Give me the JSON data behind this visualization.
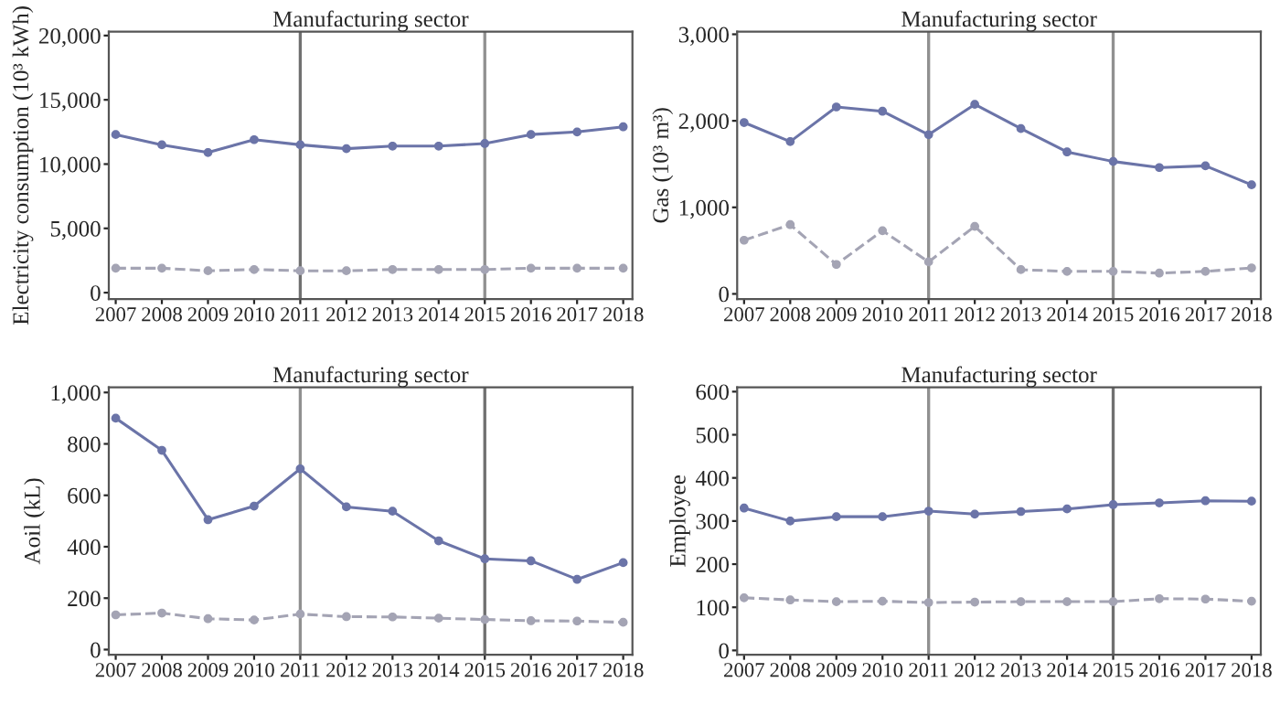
{
  "chart_data": [
    {
      "type": "line",
      "title": "Manufacturing sector",
      "ylabel": "Electricity consumption (10³ kWh)",
      "x": [
        2007,
        2008,
        2009,
        2010,
        2011,
        2012,
        2013,
        2014,
        2015,
        2016,
        2017,
        2018
      ],
      "xlim": [
        2006.85,
        2018.2
      ],
      "xticks": [
        2007,
        2008,
        2009,
        2010,
        2011,
        2012,
        2013,
        2014,
        2015,
        2016,
        2017,
        2018
      ],
      "ylim": [
        -500,
        20300
      ],
      "yticks": [
        0,
        {
          "value": 5000,
          "label": "5,000"
        },
        {
          "value": 10000,
          "label": "10,000"
        },
        {
          "value": 15000,
          "label": "15,000"
        },
        {
          "value": 20000,
          "label": "20,000"
        }
      ],
      "grid": false,
      "marker": "circle",
      "ref_lines": [
        {
          "axis": "x",
          "value": 2011,
          "color": "#707070"
        },
        {
          "axis": "x",
          "value": 2015,
          "color": "#909090"
        }
      ],
      "series": [
        {
          "color": "#6b74a8",
          "line_style": "solid",
          "values": [
            12300,
            11500,
            10900,
            11900,
            11500,
            11200,
            11400,
            11400,
            11600,
            12300,
            12500,
            12900
          ]
        },
        {
          "color": "#a4a4b4",
          "line_style": "dashed",
          "values": [
            1900,
            1900,
            1700,
            1800,
            1700,
            1700,
            1800,
            1800,
            1800,
            1900,
            1900,
            1900
          ]
        }
      ]
    },
    {
      "type": "line",
      "title": "Manufacturing sector",
      "ylabel": "Gas (10³ m³)",
      "x": [
        2007,
        2008,
        2009,
        2010,
        2011,
        2012,
        2013,
        2014,
        2015,
        2016,
        2017,
        2018
      ],
      "xlim": [
        2006.85,
        2018.2
      ],
      "xticks": [
        2007,
        2008,
        2009,
        2010,
        2011,
        2012,
        2013,
        2014,
        2015,
        2016,
        2017,
        2018
      ],
      "ylim": [
        -60,
        3030
      ],
      "yticks": [
        0,
        {
          "value": 1000,
          "label": "1,000"
        },
        {
          "value": 2000,
          "label": "2,000"
        },
        {
          "value": 3000,
          "label": "3,000"
        }
      ],
      "grid": false,
      "marker": "circle",
      "ref_lines": [
        {
          "axis": "x",
          "value": 2011,
          "color": "#909090"
        },
        {
          "axis": "x",
          "value": 2015,
          "color": "#909090"
        }
      ],
      "series": [
        {
          "color": "#6b74a8",
          "line_style": "solid",
          "values": [
            1980,
            1760,
            2160,
            2110,
            1840,
            2190,
            1910,
            1640,
            1530,
            1460,
            1480,
            1260
          ]
        },
        {
          "color": "#a4a4b4",
          "line_style": "dashed",
          "values": [
            620,
            800,
            340,
            730,
            370,
            780,
            280,
            260,
            260,
            240,
            260,
            300
          ]
        }
      ]
    },
    {
      "type": "line",
      "title": "Manufacturing sector",
      "ylabel": "Aoil (kL)",
      "x": [
        2007,
        2008,
        2009,
        2010,
        2011,
        2012,
        2013,
        2014,
        2015,
        2016,
        2017,
        2018
      ],
      "xlim": [
        2006.85,
        2018.2
      ],
      "xticks": [
        2007,
        2008,
        2009,
        2010,
        2011,
        2012,
        2013,
        2014,
        2015,
        2016,
        2017,
        2018
      ],
      "ylim": [
        -20,
        1020
      ],
      "yticks": [
        0,
        200,
        400,
        600,
        800,
        {
          "value": 1000,
          "label": "1,000"
        }
      ],
      "grid": false,
      "marker": "circle",
      "ref_lines": [
        {
          "axis": "x",
          "value": 2011,
          "color": "#909090"
        },
        {
          "axis": "x",
          "value": 2015,
          "color": "#707070"
        }
      ],
      "series": [
        {
          "color": "#6b74a8",
          "line_style": "solid",
          "values": [
            900,
            775,
            505,
            558,
            703,
            555,
            538,
            423,
            353,
            345,
            273,
            338
          ]
        },
        {
          "color": "#a4a4b4",
          "line_style": "dashed",
          "values": [
            135,
            142,
            120,
            115,
            138,
            128,
            127,
            122,
            117,
            112,
            111,
            106
          ]
        }
      ]
    },
    {
      "type": "line",
      "title": "Manufacturing sector",
      "ylabel": "Employee",
      "x": [
        2007,
        2008,
        2009,
        2010,
        2011,
        2012,
        2013,
        2014,
        2015,
        2016,
        2017,
        2018
      ],
      "xlim": [
        2006.85,
        2018.2
      ],
      "xticks": [
        2007,
        2008,
        2009,
        2010,
        2011,
        2012,
        2013,
        2014,
        2015,
        2016,
        2017,
        2018
      ],
      "ylim": [
        -10,
        610
      ],
      "yticks": [
        0,
        100,
        200,
        300,
        400,
        500,
        600
      ],
      "grid": false,
      "marker": "circle",
      "ref_lines": [
        {
          "axis": "x",
          "value": 2011,
          "color": "#909090"
        },
        {
          "axis": "x",
          "value": 2015,
          "color": "#707070"
        }
      ],
      "series": [
        {
          "color": "#6b74a8",
          "line_style": "solid",
          "values": [
            330,
            300,
            310,
            310,
            323,
            316,
            322,
            328,
            338,
            342,
            347,
            346
          ]
        },
        {
          "color": "#a4a4b4",
          "line_style": "dashed",
          "values": [
            122,
            117,
            113,
            114,
            111,
            112,
            113,
            113,
            113,
            120,
            119,
            114
          ]
        }
      ]
    }
  ]
}
